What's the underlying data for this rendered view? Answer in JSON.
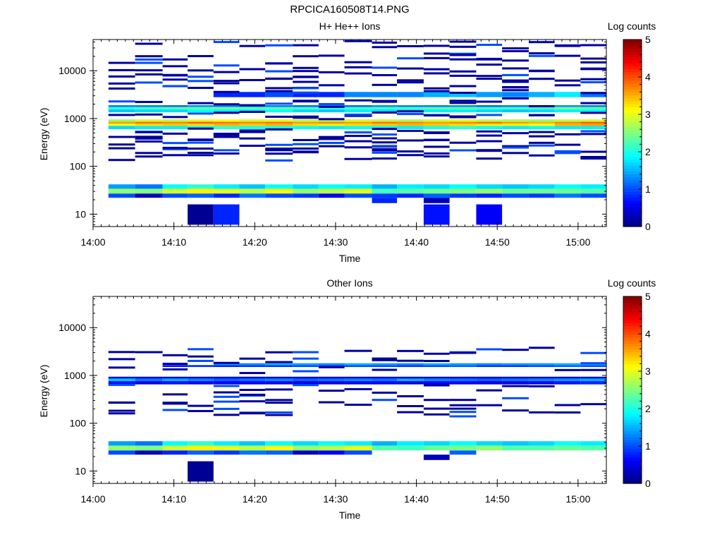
{
  "page_title": "RPCICA160508T14.PNG",
  "colormap": [
    "#00007f",
    "#0000ff",
    "#007fff",
    "#00ffff",
    "#7fff7f",
    "#ffff00",
    "#ff7f00",
    "#ff0000",
    "#7f0000"
  ],
  "chart_data": [
    {
      "type": "heatmap",
      "title": "H+ He++ Ions",
      "xlabel": "Time",
      "ylabel": "Energy (eV)",
      "colorbar_label": "Log counts",
      "colorbar_range": [
        0,
        5
      ],
      "colorbar_ticks": [
        "0",
        "1",
        "2",
        "3",
        "4",
        "5"
      ],
      "x_tick_labels": [
        "14:00",
        "14:10",
        "14:20",
        "14:30",
        "14:40",
        "14:50",
        "15:00"
      ],
      "y_tick_labels": [
        "10",
        "100",
        "1000",
        "10000"
      ],
      "y_scale": "log",
      "x_range_minutes": [
        0,
        63.5
      ],
      "y_range_ev": [
        5.5,
        45000
      ],
      "time_bins_minutes": [
        1.9,
        5.2,
        8.6,
        11.7,
        14.9,
        18.1,
        21.3,
        24.7,
        27.9,
        31.1,
        34.5,
        37.6,
        40.9,
        44.1,
        47.4,
        50.6,
        53.9,
        57.1,
        60.3,
        63.5
      ],
      "cells": [
        {
          "e": [
            600,
            700
          ],
          "v": [
            1.7,
            1.8,
            1.8,
            2.0,
            2.1,
            2.0,
            2.0,
            1.9,
            1.8,
            1.9,
            1.9,
            1.8,
            2.0,
            2.1,
            1.9,
            1.8,
            1.9,
            1.8,
            1.8
          ]
        },
        {
          "e": [
            700,
            780
          ],
          "v": [
            3.0,
            3.3,
            3.4,
            3.3,
            3.5,
            3.4,
            3.5,
            3.3,
            3.2,
            3.3,
            3.4,
            3.5,
            3.4,
            3.3,
            3.2,
            3.2,
            3.1,
            3.5,
            3.6
          ]
        },
        {
          "e": [
            780,
            860
          ],
          "v": [
            3.6,
            3.8,
            3.7,
            3.9,
            3.8,
            3.7,
            3.8,
            3.6,
            3.7,
            3.6,
            3.8,
            3.7,
            3.6,
            3.7,
            3.8,
            3.6,
            3.5,
            3.7,
            3.9
          ]
        },
        {
          "e": [
            860,
            960
          ],
          "v": [
            2.6,
            2.9,
            2.8,
            3.0,
            3.1,
            2.9,
            3.0,
            2.8,
            2.7,
            2.9,
            2.8,
            2.7,
            2.9,
            3.0,
            2.8,
            2.7,
            2.6,
            2.8,
            2.9
          ]
        },
        {
          "e": [
            1350,
            1550
          ],
          "v": [
            1.6,
            1.7,
            1.7,
            1.9,
            1.8,
            1.8,
            1.9,
            1.7,
            1.6,
            1.8,
            1.7,
            1.7,
            1.8,
            1.8,
            1.7,
            1.6,
            1.7,
            1.8,
            1.9
          ]
        },
        {
          "e": [
            1550,
            1750
          ],
          "v": [
            2.1,
            2.2,
            2.3,
            2.3,
            2.4,
            2.3,
            2.3,
            2.2,
            2.1,
            2.2,
            2.2,
            2.2,
            2.3,
            2.3,
            2.2,
            2.2,
            2.2,
            2.4,
            2.3
          ]
        },
        {
          "e": [
            1750,
            1900
          ],
          "v": [
            1.2,
            1.2,
            1.1,
            1.3,
            1.2,
            1.2,
            1.2,
            1.1,
            1.2,
            1.1,
            1.3,
            1.2,
            1.2,
            1.3,
            1.1,
            1.2,
            1.2,
            1.3,
            1.2
          ]
        },
        {
          "e": [
            2800,
            3600
          ],
          "v": [
            null,
            null,
            null,
            null,
            0.8,
            0.8,
            1.0,
            0.8,
            0.8,
            1.3,
            1.3,
            1.3,
            1.5,
            1.6,
            1.4,
            1.3,
            1.5,
            1.8,
            1.2
          ]
        },
        {
          "e": [
            22,
            27
          ],
          "v": [
            1.0,
            0.3,
            1.0,
            1.1,
            0.8,
            1.2,
            1.0,
            0.9,
            0.6,
            1.0,
            0.9,
            0.8,
            1.1,
            0.9,
            0.8,
            1.0,
            0.9,
            1.2,
            1.0
          ]
        },
        {
          "e": [
            27,
            34
          ],
          "v": [
            2.6,
            2.5,
            2.9,
            3.2,
            3.0,
            2.8,
            3.1,
            2.6,
            2.8,
            3.0,
            2.2,
            2.3,
            2.4,
            2.5,
            2.6,
            2.4,
            2.4,
            2.4,
            2.3
          ]
        },
        {
          "e": [
            34,
            42
          ],
          "v": [
            1.4,
            1.2,
            1.9,
            2.1,
            1.8,
            1.6,
            1.9,
            1.7,
            1.9,
            1.8,
            1.5,
            1.8,
            1.7,
            1.9,
            1.7,
            1.6,
            1.7,
            1.9,
            1.8
          ]
        },
        {
          "e": [
            17,
            22
          ],
          "v": [
            null,
            null,
            null,
            null,
            null,
            null,
            null,
            null,
            null,
            null,
            0.8,
            null,
            0.3,
            null,
            null,
            null,
            null,
            null,
            null
          ]
        },
        {
          "e": [
            6,
            16
          ],
          "v": [
            null,
            null,
            null,
            0.1,
            0.8,
            null,
            null,
            null,
            null,
            null,
            null,
            null,
            0.7,
            null,
            0.6,
            null,
            null,
            null,
            null
          ]
        }
      ],
      "sparse_levels_ev": [
        150,
        180,
        210,
        230,
        250,
        270,
        310,
        360,
        420,
        480,
        560,
        1100,
        1250,
        2000,
        2300,
        3900,
        4500,
        5000,
        6200,
        7100,
        8800,
        11000,
        12500,
        16000,
        20000,
        23000,
        30000,
        37000
      ]
    },
    {
      "type": "heatmap",
      "title": "Other Ions",
      "xlabel": "Time",
      "ylabel": "Energy (eV)",
      "colorbar_label": "Log counts",
      "colorbar_range": [
        0,
        5
      ],
      "colorbar_ticks": [
        "0",
        "1",
        "2",
        "3",
        "4",
        "5"
      ],
      "x_tick_labels": [
        "14:00",
        "14:10",
        "14:20",
        "14:30",
        "14:40",
        "14:50",
        "15:00"
      ],
      "y_tick_labels": [
        "10",
        "100",
        "1000",
        "10000"
      ],
      "y_scale": "log",
      "x_range_minutes": [
        0,
        63.5
      ],
      "y_range_ev": [
        5.5,
        45000
      ],
      "time_bins_minutes": [
        1.9,
        5.2,
        8.6,
        11.7,
        14.9,
        18.1,
        21.3,
        24.7,
        27.9,
        31.1,
        34.5,
        37.6,
        40.9,
        44.1,
        47.4,
        50.6,
        53.9,
        57.1,
        60.3,
        63.5
      ],
      "cells": [
        {
          "e": [
            650,
            760
          ],
          "v": [
            0.7,
            0.5,
            0.7,
            0.6,
            0.6,
            0.6,
            0.6,
            0.5,
            0.5,
            0.6,
            0.6,
            0.5,
            0.6,
            0.6,
            0.5,
            0.5,
            0.6,
            0.7,
            0.8
          ]
        },
        {
          "e": [
            760,
            860
          ],
          "v": [
            1.6,
            1.2,
            1.5,
            1.3,
            1.1,
            1.2,
            1.3,
            1.1,
            1.2,
            1.3,
            1.2,
            1.5,
            1.3,
            1.2,
            1.1,
            1.2,
            1.3,
            1.4,
            1.5
          ]
        },
        {
          "e": [
            860,
            940
          ],
          "v": [
            0.6,
            0.5,
            0.6,
            0.5,
            0.5,
            0.5,
            0.5,
            0.5,
            0.5,
            0.5,
            0.5,
            0.5,
            0.5,
            0.5,
            0.5,
            0.5,
            0.5,
            0.6,
            0.6
          ]
        },
        {
          "e": [
            1500,
            1650
          ],
          "v": [
            null,
            null,
            0.7,
            0.9,
            0.8,
            0.9,
            0.9,
            1.0,
            0.9,
            1.0,
            1.0,
            0.9,
            1.0,
            1.1,
            0.9,
            0.9,
            1.0,
            1.1,
            1.0
          ]
        },
        {
          "e": [
            1650,
            1800
          ],
          "v": [
            null,
            null,
            null,
            null,
            1.4,
            1.3,
            1.5,
            1.4,
            1.3,
            1.5,
            1.4,
            1.3,
            1.5,
            1.4,
            1.3,
            1.4,
            1.4,
            1.5,
            1.4
          ]
        },
        {
          "e": [
            22,
            27
          ],
          "v": [
            1.0,
            0.3,
            0.8,
            1.1,
            0.9,
            1.2,
            1.1,
            0.3,
            0.6,
            1.0,
            null,
            null,
            null,
            1.1,
            null,
            null,
            null,
            null,
            null
          ]
        },
        {
          "e": [
            27,
            34
          ],
          "v": [
            2.6,
            2.5,
            2.9,
            3.2,
            3.0,
            2.8,
            3.1,
            2.6,
            2.8,
            3.0,
            2.3,
            2.2,
            2.4,
            2.5,
            2.6,
            2.3,
            2.3,
            2.4,
            2.3
          ]
        },
        {
          "e": [
            34,
            42
          ],
          "v": [
            1.4,
            1.2,
            1.9,
            2.1,
            1.8,
            1.6,
            1.9,
            1.7,
            1.9,
            1.8,
            1.5,
            1.8,
            1.7,
            1.9,
            1.7,
            1.6,
            1.7,
            1.9,
            1.8
          ]
        },
        {
          "e": [
            17,
            22
          ],
          "v": [
            null,
            null,
            null,
            null,
            null,
            null,
            null,
            null,
            null,
            null,
            null,
            null,
            0.3,
            null,
            null,
            null,
            null,
            null,
            null
          ]
        },
        {
          "e": [
            6,
            16
          ],
          "v": [
            null,
            null,
            null,
            0.1,
            null,
            null,
            null,
            null,
            null,
            null,
            null,
            null,
            null,
            null,
            null,
            null,
            null,
            null,
            null
          ]
        }
      ],
      "sparse_levels_ev": [
        150,
        165,
        210,
        250,
        270,
        330,
        430,
        560,
        1300,
        2000,
        2300,
        3200,
        3400
      ]
    }
  ]
}
